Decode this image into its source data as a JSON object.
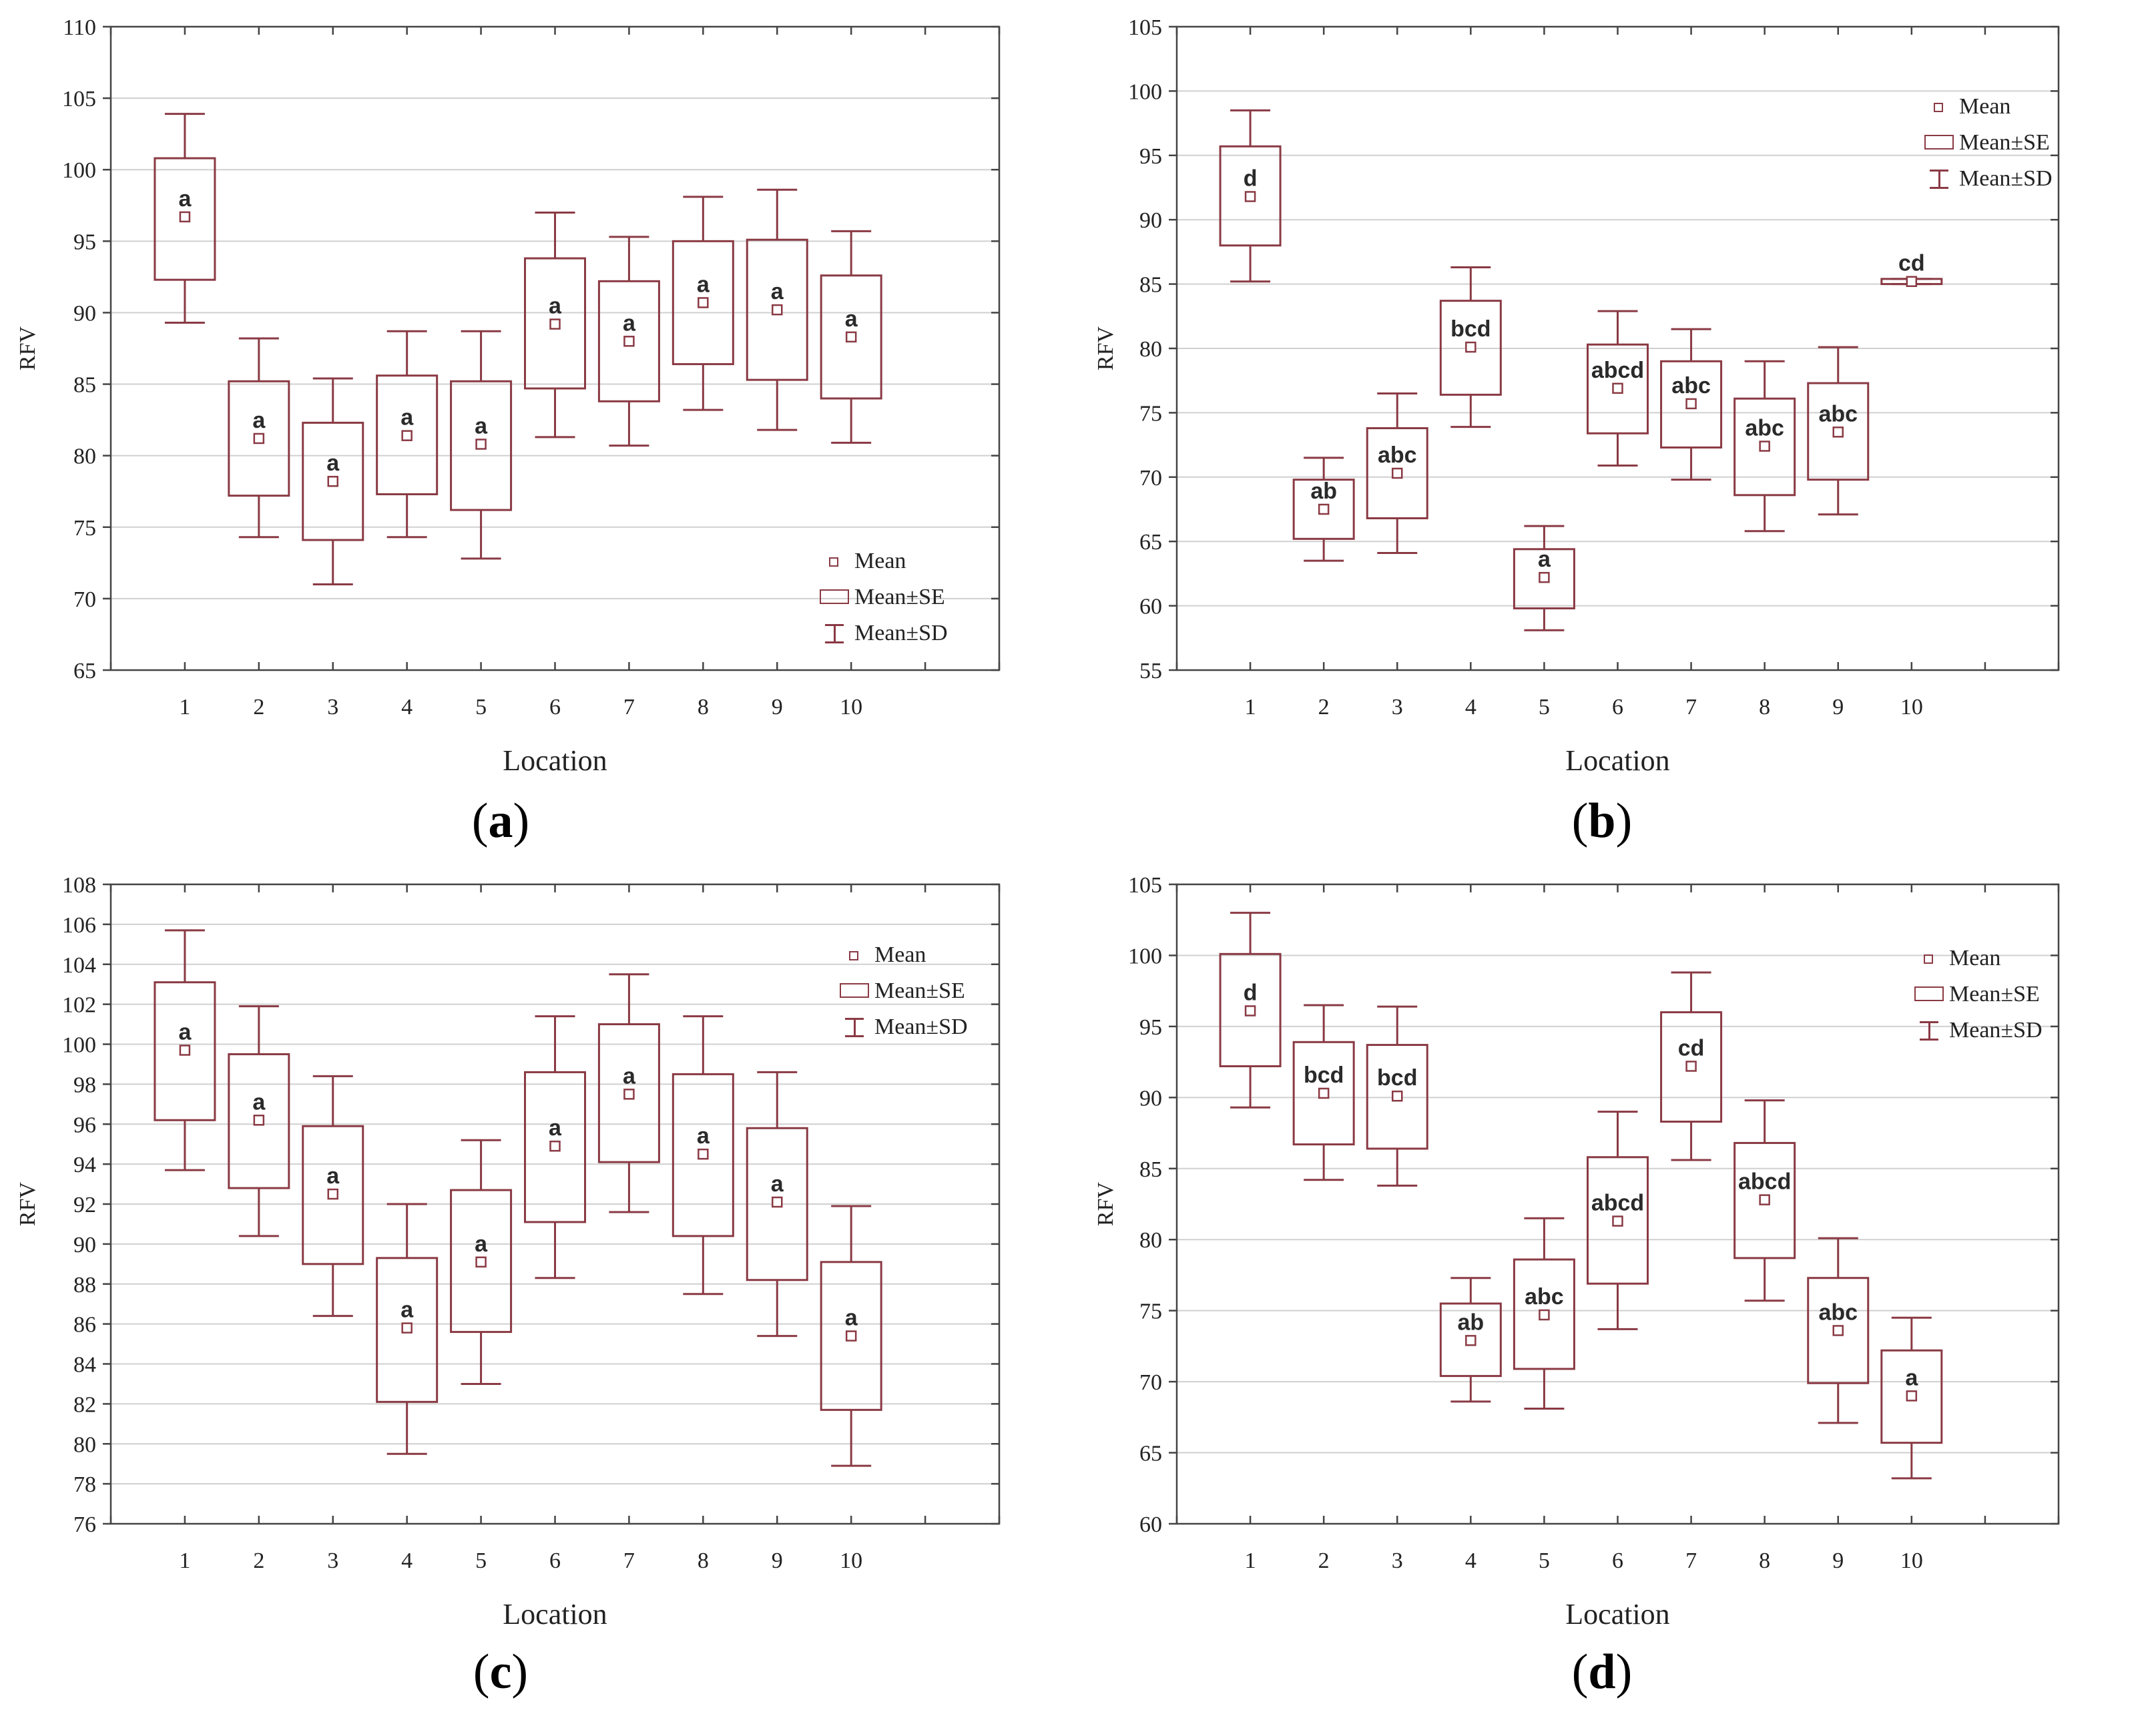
{
  "colors": {
    "box": "#8a3a44",
    "grid": "#d0d0d0",
    "axis": "#444444",
    "text": "#222222"
  },
  "legend": {
    "mean": "Mean",
    "se": "Mean±SE",
    "sd": "Mean±SD"
  },
  "chart_data": [
    {
      "type": "box",
      "caption_letter": "a",
      "title": "",
      "xlabel": "Location",
      "ylabel": "RFV",
      "ylim": [
        65,
        110
      ],
      "ytick_step": 5,
      "xlim": [
        0,
        12
      ],
      "grid": true,
      "legend_position": "bottom-right",
      "categories": [
        "1",
        "2",
        "3",
        "4",
        "5",
        "6",
        "7",
        "8",
        "9",
        "10"
      ],
      "mean": [
        96.7,
        81.2,
        78.2,
        81.4,
        80.8,
        89.2,
        88.0,
        90.7,
        90.2,
        88.3
      ],
      "se_low": [
        92.3,
        77.2,
        74.1,
        77.3,
        76.2,
        84.7,
        83.8,
        86.4,
        85.3,
        84.0
      ],
      "se_high": [
        100.8,
        85.2,
        82.3,
        85.6,
        85.2,
        93.8,
        92.2,
        95.0,
        95.1,
        92.6
      ],
      "sd_low": [
        89.3,
        74.3,
        71.0,
        74.3,
        72.8,
        81.3,
        80.7,
        83.2,
        81.8,
        80.9
      ],
      "sd_high": [
        103.9,
        88.2,
        85.4,
        88.7,
        88.7,
        97.0,
        95.3,
        98.1,
        98.6,
        95.7
      ],
      "group_labels": [
        "a",
        "a",
        "a",
        "a",
        "a",
        "a",
        "a",
        "a",
        "a",
        "a"
      ]
    },
    {
      "type": "box",
      "caption_letter": "b",
      "title": "",
      "xlabel": "Location",
      "ylabel": "RFV",
      "ylim": [
        55,
        105
      ],
      "ytick_step": 5,
      "xlim": [
        0,
        12
      ],
      "grid": true,
      "legend_position": "top-right",
      "categories": [
        "1",
        "2",
        "3",
        "4",
        "5",
        "6",
        "7",
        "8",
        "9",
        "10"
      ],
      "mean": [
        91.8,
        67.5,
        70.3,
        80.1,
        62.2,
        76.9,
        75.7,
        72.4,
        73.5,
        85.2
      ],
      "se_low": [
        88.0,
        65.2,
        66.8,
        76.4,
        59.8,
        73.4,
        72.3,
        68.6,
        69.8,
        85.0
      ],
      "se_high": [
        95.7,
        69.8,
        73.8,
        83.7,
        64.4,
        80.3,
        79.0,
        76.1,
        77.3,
        85.4
      ],
      "sd_low": [
        85.2,
        63.5,
        64.1,
        73.9,
        58.1,
        70.9,
        69.8,
        65.8,
        67.1,
        85.0
      ],
      "sd_high": [
        98.5,
        71.5,
        76.5,
        86.3,
        66.2,
        82.9,
        81.5,
        79.0,
        80.1,
        85.4
      ],
      "group_labels": [
        "d",
        "ab",
        "abc",
        "bcd",
        "a",
        "abcd",
        "abc",
        "abc",
        "abc",
        "cd"
      ]
    },
    {
      "type": "box",
      "caption_letter": "c",
      "title": "",
      "xlabel": "Location",
      "ylabel": "RFV",
      "ylim": [
        76,
        108
      ],
      "ytick_step": 2,
      "xlim": [
        0,
        12
      ],
      "grid": true,
      "legend_position": "top-right",
      "categories": [
        "1",
        "2",
        "3",
        "4",
        "5",
        "6",
        "7",
        "8",
        "9",
        "10"
      ],
      "mean": [
        99.7,
        96.2,
        92.5,
        85.8,
        89.1,
        94.9,
        97.5,
        94.5,
        92.1,
        85.4
      ],
      "se_low": [
        96.2,
        92.8,
        89.0,
        82.1,
        85.6,
        91.1,
        94.1,
        90.4,
        88.2,
        81.7
      ],
      "se_high": [
        103.1,
        99.5,
        95.9,
        89.3,
        92.7,
        98.6,
        101.0,
        98.5,
        95.8,
        89.1
      ],
      "sd_low": [
        93.7,
        90.4,
        86.4,
        79.5,
        83.0,
        88.3,
        91.6,
        87.5,
        85.4,
        78.9
      ],
      "sd_high": [
        105.7,
        101.9,
        98.4,
        92.0,
        95.2,
        101.4,
        103.5,
        101.4,
        98.6,
        91.9
      ],
      "group_labels": [
        "a",
        "a",
        "a",
        "a",
        "a",
        "a",
        "a",
        "a",
        "a",
        "a"
      ]
    },
    {
      "type": "box",
      "caption_letter": "d",
      "title": "",
      "xlabel": "Location",
      "ylabel": "RFV",
      "ylim": [
        60,
        105
      ],
      "ytick_step": 5,
      "xlim": [
        0,
        12
      ],
      "grid": true,
      "legend_position": "top-right",
      "categories": [
        "1",
        "2",
        "3",
        "4",
        "5",
        "6",
        "7",
        "8",
        "9",
        "10"
      ],
      "mean": [
        96.1,
        90.3,
        90.1,
        72.9,
        74.7,
        81.3,
        92.2,
        82.8,
        73.6,
        69.0
      ],
      "se_low": [
        92.2,
        86.7,
        86.4,
        70.4,
        70.9,
        76.9,
        88.3,
        78.7,
        69.9,
        65.7
      ],
      "se_high": [
        100.1,
        93.9,
        93.7,
        75.5,
        78.6,
        85.8,
        96.0,
        86.8,
        77.3,
        72.2
      ],
      "sd_low": [
        89.3,
        84.2,
        83.8,
        68.6,
        68.1,
        73.7,
        85.6,
        75.7,
        67.1,
        63.2
      ],
      "sd_high": [
        103.0,
        96.5,
        96.4,
        77.3,
        81.5,
        89.0,
        98.8,
        89.8,
        80.1,
        74.5
      ],
      "group_labels": [
        "d",
        "bcd",
        "bcd",
        "ab",
        "abc",
        "abcd",
        "cd",
        "abcd",
        "abc",
        "a"
      ]
    }
  ]
}
